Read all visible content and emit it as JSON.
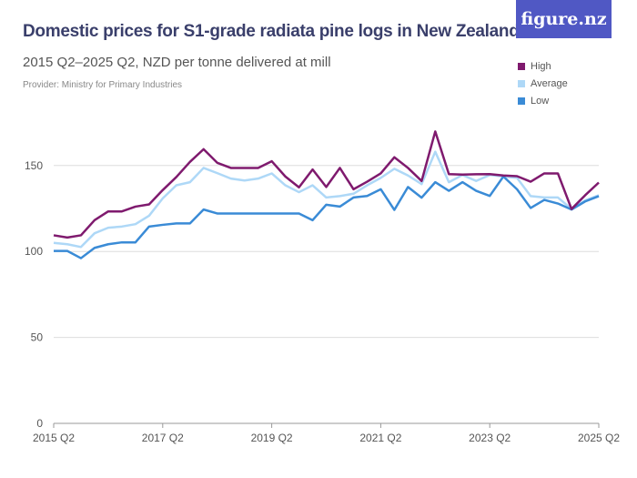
{
  "header": {
    "title": "Domestic prices for S1-grade radiata pine logs in New Zealand",
    "subtitle": "2015 Q2–2025 Q2, NZD per tonne delivered at mill",
    "provider": "Provider: Ministry for Primary Industries",
    "logo": "figure.nz"
  },
  "colors": {
    "logo_bg": "#5058c4",
    "high": "#7f1a6e",
    "average": "#aed8f7",
    "low": "#3a8bd6"
  },
  "chart_data": {
    "type": "line",
    "title": "Domestic prices for S1-grade radiata pine logs in New Zealand",
    "subtitle": "2015 Q2–2025 Q2, NZD per tonne delivered at mill",
    "x_ticks": [
      "2015 Q2",
      "2017 Q2",
      "2019 Q2",
      "2021 Q2",
      "2023 Q2",
      "2025 Q2"
    ],
    "y_ticks": [
      0,
      50,
      100,
      150
    ],
    "ylim": [
      0,
      175
    ],
    "grid": true,
    "legend_position": "top-right",
    "x_start": "2015 Q2",
    "x_end": "2025 Q2",
    "x_step": "quarter",
    "series": [
      {
        "name": "High",
        "color": "#7f1a6e",
        "values": [
          109.4,
          108.1,
          109.4,
          118.2,
          123.3,
          123.3,
          126.1,
          127.4,
          135.7,
          143.3,
          152.1,
          159.5,
          151.6,
          148.6,
          148.6,
          148.6,
          152.5,
          143.6,
          137.3,
          147.7,
          137.5,
          148.6,
          136.2,
          140.6,
          145.4,
          154.8,
          148.6,
          141.0,
          169.8,
          145.0,
          144.7,
          144.9,
          145.0,
          144.2,
          143.8,
          140.6,
          145.4,
          145.4,
          124.7,
          132.7,
          140.1
        ]
      },
      {
        "name": "Average",
        "color": "#aed8f7",
        "values": [
          105.0,
          104.2,
          102.6,
          110.6,
          113.8,
          114.5,
          115.9,
          120.8,
          130.9,
          138.5,
          140.3,
          148.6,
          145.6,
          142.4,
          141.3,
          142.4,
          145.4,
          138.5,
          134.5,
          138.5,
          131.4,
          132.2,
          133.6,
          138.5,
          142.8,
          148.1,
          144.2,
          139.2,
          158.0,
          140.3,
          144.5,
          141.0,
          144.5,
          143.6,
          142.8,
          132.2,
          131.4,
          131.4,
          124.7,
          129.7,
          132.7
        ]
      },
      {
        "name": "Low",
        "color": "#3a8bd6",
        "values": [
          100.3,
          100.3,
          96.1,
          102.1,
          104.2,
          105.3,
          105.3,
          114.5,
          115.5,
          116.3,
          116.3,
          124.4,
          122.1,
          122.1,
          122.1,
          122.1,
          122.1,
          122.1,
          122.1,
          118.2,
          127.2,
          126.1,
          131.4,
          132.3,
          136.2,
          124.2,
          137.5,
          131.3,
          140.3,
          135.3,
          140.3,
          135.3,
          132.3,
          143.6,
          136.2,
          125.3,
          130.0,
          127.9,
          124.4,
          129.1,
          132.2
        ]
      }
    ]
  }
}
